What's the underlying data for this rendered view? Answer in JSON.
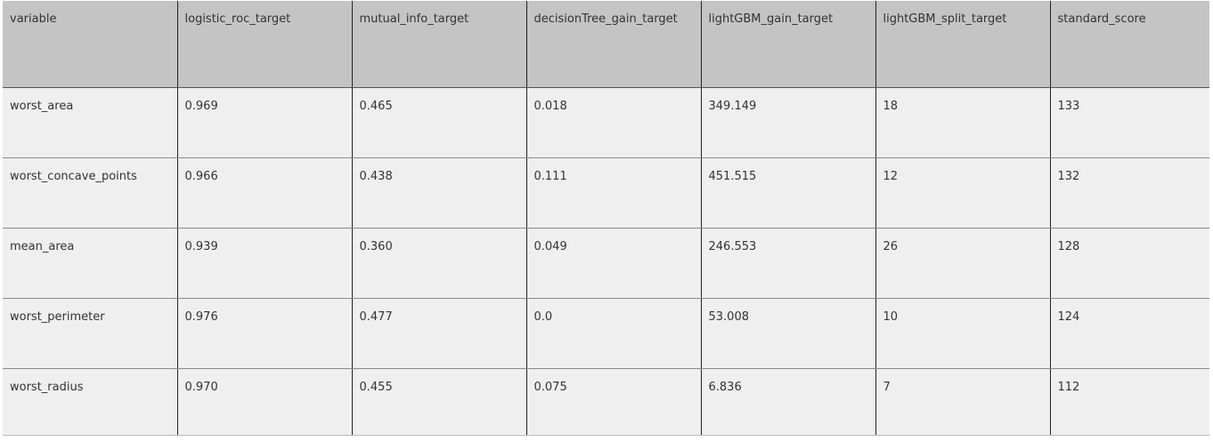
{
  "table": {
    "columns": [
      "variable",
      "logistic_roc_target",
      "mutual_info_target",
      "decisionTree_gain_target",
      "lightGBM_gain_target",
      "lightGBM_split_target",
      "standard_score"
    ],
    "rows": [
      [
        "worst_area",
        "0.969",
        "0.465",
        "0.018",
        "349.149",
        "18",
        "133"
      ],
      [
        "worst_concave_points",
        "0.966",
        "0.438",
        "0.111",
        "451.515",
        "12",
        "132"
      ],
      [
        "mean_area",
        "0.939",
        "0.360",
        "0.049",
        "246.553",
        "26",
        "128"
      ],
      [
        "worst_perimeter",
        "0.976",
        "0.477",
        "0.0",
        "53.008",
        "10",
        "124"
      ],
      [
        "worst_radius",
        "0.970",
        "0.455",
        "0.075",
        "6.836",
        "7",
        "112"
      ]
    ]
  }
}
